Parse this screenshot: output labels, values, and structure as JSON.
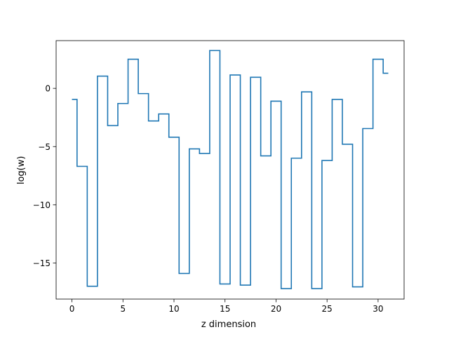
{
  "chart_data": {
    "type": "line",
    "style": "step-mid",
    "title": "",
    "xlabel": "z dimension",
    "ylabel": "log(w)",
    "xlim": [
      -1.55,
      32.55
    ],
    "ylim": [
      -18.1,
      4.1
    ],
    "xticks": [
      0,
      5,
      10,
      15,
      20,
      25,
      30
    ],
    "yticks": [
      0,
      -5,
      -10,
      -15
    ],
    "grid": false,
    "line_color": "#1f77b4",
    "x": [
      0,
      1,
      2,
      3,
      4,
      5,
      6,
      7,
      8,
      9,
      10,
      11,
      12,
      13,
      14,
      15,
      16,
      17,
      18,
      19,
      20,
      21,
      22,
      23,
      24,
      25,
      26,
      27,
      28,
      29,
      30,
      31
    ],
    "y": [
      -0.95,
      -6.7,
      -17.0,
      1.05,
      -3.2,
      -1.3,
      2.5,
      -0.45,
      -2.8,
      -2.2,
      -4.2,
      -15.9,
      -5.2,
      -5.6,
      3.25,
      -16.8,
      1.15,
      -16.9,
      0.95,
      -5.8,
      -1.1,
      -17.2,
      -6.0,
      -0.3,
      -17.2,
      -6.2,
      -0.95,
      -4.8,
      -17.05,
      -3.45,
      2.5,
      1.3
    ]
  }
}
